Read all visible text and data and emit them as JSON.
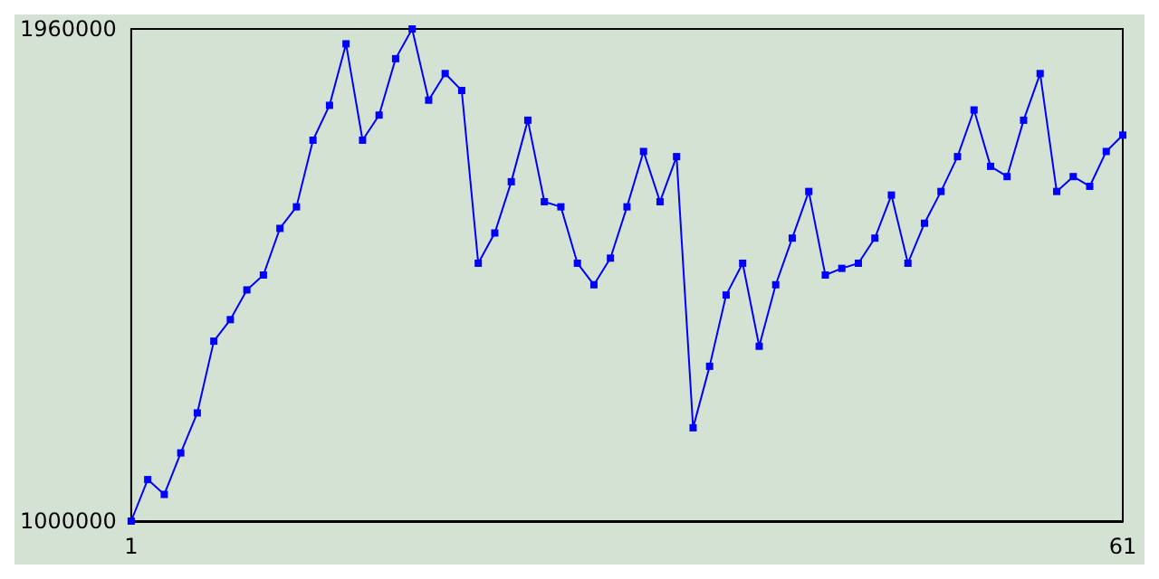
{
  "chart_data": {
    "type": "line",
    "x": [
      1,
      2,
      3,
      4,
      5,
      6,
      7,
      8,
      9,
      10,
      11,
      12,
      13,
      14,
      15,
      16,
      17,
      18,
      19,
      20,
      21,
      22,
      23,
      24,
      25,
      26,
      27,
      28,
      29,
      30,
      31,
      32,
      33,
      34,
      35,
      36,
      37,
      38,
      39,
      40,
      41,
      42,
      43,
      44,
      45,
      46,
      47,
      48,
      49,
      50,
      51,
      52,
      53,
      54,
      55,
      56,
      57,
      58,
      59,
      60,
      61
    ],
    "series": [
      {
        "color": "#0000ff",
        "values": [
          1000000,
          1081000,
          1052000,
          1133000,
          1211000,
          1351000,
          1393000,
          1451000,
          1480000,
          1571000,
          1613000,
          1743000,
          1811000,
          1931000,
          1743000,
          1792000,
          1902000,
          1960000,
          1821000,
          1873000,
          1840000,
          1503000,
          1562000,
          1662000,
          1782000,
          1623000,
          1613000,
          1503000,
          1461000,
          1513000,
          1613000,
          1721000,
          1623000,
          1711000,
          1182000,
          1302000,
          1441000,
          1503000,
          1341000,
          1461000,
          1552000,
          1643000,
          1480000,
          1493000,
          1503000,
          1552000,
          1636000,
          1503000,
          1581000,
          1643000,
          1711000,
          1802000,
          1692000,
          1672000,
          1782000,
          1873000,
          1643000,
          1672000,
          1653000,
          1721000,
          1753000
        ]
      }
    ],
    "xlim": [
      1,
      61
    ],
    "xticks": [
      1,
      61
    ],
    "ylim": [
      1000000,
      1960000
    ],
    "yticks": [
      1000000,
      1960000
    ],
    "grid": false,
    "marker": "square",
    "line_style": "solid"
  }
}
